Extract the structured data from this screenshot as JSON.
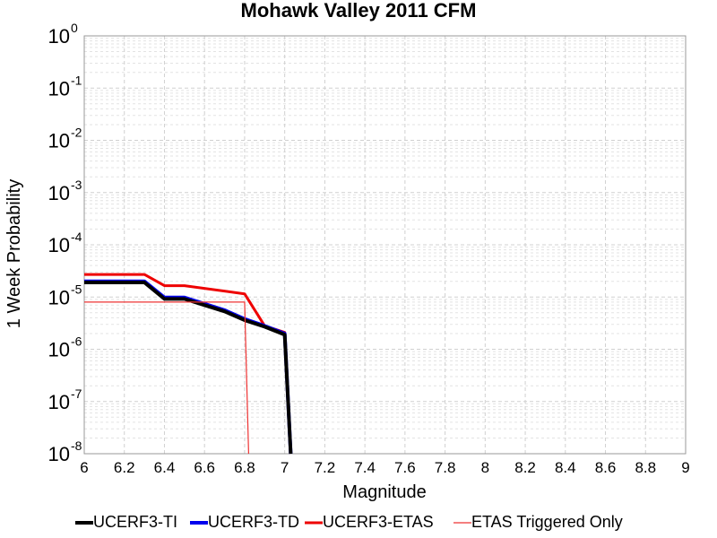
{
  "chart_data": {
    "type": "line",
    "title": "Mohawk Valley 2011 CFM",
    "xlabel": "Magnitude",
    "ylabel": "1 Week Probability",
    "xlim": [
      6,
      9
    ],
    "ylim": [
      1e-08,
      1
    ],
    "yscale": "log",
    "grid": true,
    "legend_position": "bottom",
    "x_ticks": [
      "6",
      "6.2",
      "6.4",
      "6.6",
      "6.8",
      "7",
      "7.2",
      "7.4",
      "7.6",
      "7.8",
      "8",
      "8.2",
      "8.4",
      "8.6",
      "8.8",
      "9"
    ],
    "y_ticks": [
      {
        "base": "10",
        "exp": "0"
      },
      {
        "base": "10",
        "exp": "-1"
      },
      {
        "base": "10",
        "exp": "-2"
      },
      {
        "base": "10",
        "exp": "-3"
      },
      {
        "base": "10",
        "exp": "-4"
      },
      {
        "base": "10",
        "exp": "-5"
      },
      {
        "base": "10",
        "exp": "-6"
      },
      {
        "base": "10",
        "exp": "-7"
      },
      {
        "base": "10",
        "exp": "-8"
      }
    ],
    "series": [
      {
        "name": "UCERF3-TI",
        "color": "#000000",
        "points": [
          [
            6.0,
            1.9e-05
          ],
          [
            6.3,
            1.9e-05
          ],
          [
            6.4,
            9.2e-06
          ],
          [
            6.5,
            9.2e-06
          ],
          [
            6.7,
            5.3e-06
          ],
          [
            6.8,
            3.6e-06
          ],
          [
            6.9,
            2.7e-06
          ],
          [
            7.0,
            1.9e-06
          ],
          [
            7.03,
            1e-08
          ]
        ]
      },
      {
        "name": "UCERF3-TD",
        "color": "#0000ee",
        "points": [
          [
            6.0,
            2e-05
          ],
          [
            6.3,
            2e-05
          ],
          [
            6.4,
            9.8e-06
          ],
          [
            6.5,
            9.8e-06
          ],
          [
            6.7,
            5.6e-06
          ],
          [
            6.8,
            3.8e-06
          ],
          [
            6.9,
            2.8e-06
          ],
          [
            7.0,
            2e-06
          ],
          [
            7.03,
            1e-08
          ]
        ]
      },
      {
        "name": "UCERF3-ETAS",
        "color": "#ee0000",
        "points": [
          [
            6.0,
            2.7e-05
          ],
          [
            6.3,
            2.7e-05
          ],
          [
            6.4,
            1.65e-05
          ],
          [
            6.5,
            1.65e-05
          ],
          [
            6.8,
            1.15e-05
          ],
          [
            6.9,
            2.8e-06
          ],
          [
            7.0,
            2.1e-06
          ],
          [
            7.03,
            1e-08
          ]
        ]
      },
      {
        "name": "ETAS Triggered Only",
        "color": "#ee3333",
        "points": [
          [
            6.0,
            8e-06
          ],
          [
            6.8,
            8e-06
          ],
          [
            6.82,
            1e-08
          ]
        ]
      }
    ]
  }
}
